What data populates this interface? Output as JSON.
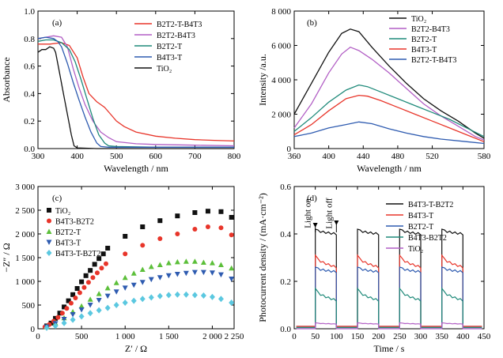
{
  "chart_data": [
    {
      "id": "a",
      "panel_label": "(a)",
      "type": "line",
      "xlabel": "Wavelength / nm",
      "ylabel": "Absorbance",
      "xlim": [
        300,
        800
      ],
      "ylim": [
        0.0,
        1.0
      ],
      "xticks": [
        300,
        400,
        500,
        600,
        700,
        800
      ],
      "xtick_labels": [
        "300",
        "400",
        "500",
        "600",
        "700",
        "800"
      ],
      "yticks": [
        0,
        0.2,
        0.4,
        0.6,
        0.8,
        1.0
      ],
      "ytick_labels": [
        "0.0",
        "0.2",
        "0.4",
        "0.6",
        "0.8",
        "1.0"
      ],
      "legend_position": "top-right",
      "series": [
        {
          "name": "B2T2-T-B4T3",
          "color": "#e8352a",
          "x": [
            300,
            330,
            360,
            380,
            400,
            415,
            430,
            450,
            470,
            485,
            500,
            520,
            550,
            600,
            650,
            700,
            750,
            800
          ],
          "y": [
            0.76,
            0.76,
            0.77,
            0.75,
            0.66,
            0.52,
            0.4,
            0.34,
            0.3,
            0.25,
            0.2,
            0.16,
            0.12,
            0.09,
            0.075,
            0.065,
            0.06,
            0.055
          ]
        },
        {
          "name": "B2T2-B4T3",
          "color": "#b25fc5",
          "x": [
            300,
            320,
            340,
            360,
            375,
            390,
            405,
            420,
            440,
            460,
            480,
            500,
            550,
            600,
            700,
            800
          ],
          "y": [
            0.8,
            0.81,
            0.82,
            0.81,
            0.74,
            0.58,
            0.44,
            0.32,
            0.2,
            0.12,
            0.08,
            0.05,
            0.035,
            0.03,
            0.025,
            0.02
          ]
        },
        {
          "name": "B2T2-T",
          "color": "#1f8a7a",
          "x": [
            300,
            320,
            340,
            360,
            380,
            395,
            410,
            425,
            440,
            455,
            470,
            480,
            500,
            600,
            800
          ],
          "y": [
            0.78,
            0.79,
            0.79,
            0.77,
            0.72,
            0.63,
            0.5,
            0.36,
            0.22,
            0.1,
            0.04,
            0.02,
            0.015,
            0.01,
            0.01
          ]
        },
        {
          "name": "B4T3-T",
          "color": "#2e5bb0",
          "x": [
            300,
            320,
            340,
            350,
            360,
            375,
            390,
            405,
            420,
            435,
            450,
            460,
            480,
            600,
            800
          ],
          "y": [
            0.8,
            0.81,
            0.8,
            0.78,
            0.74,
            0.62,
            0.48,
            0.35,
            0.23,
            0.12,
            0.04,
            0.015,
            0.01,
            0.01,
            0.01
          ]
        },
        {
          "name": "TiO2",
          "color": "#111111",
          "x": [
            300,
            310,
            320,
            330,
            340,
            345,
            355,
            365,
            375,
            385,
            392,
            400,
            450,
            800
          ],
          "y": [
            0.7,
            0.72,
            0.72,
            0.74,
            0.73,
            0.7,
            0.55,
            0.4,
            0.25,
            0.1,
            0.02,
            0.005,
            0.0,
            0.0
          ]
        }
      ]
    },
    {
      "id": "b",
      "panel_label": "(b)",
      "type": "line",
      "xlabel": "Wavelength / nm",
      "ylabel": "Intensity /a.u.",
      "xlim": [
        360,
        580
      ],
      "ylim": [
        0,
        8000
      ],
      "xticks": [
        360,
        400,
        440,
        480,
        520,
        580
      ],
      "xtick_labels": [
        "360",
        "400",
        "440",
        "480",
        "520",
        "580"
      ],
      "yticks": [
        0,
        2000,
        4000,
        6000,
        8000
      ],
      "ytick_labels": [
        "0",
        "2 000",
        "4 000",
        "6 000",
        "8 000"
      ],
      "legend_position": "top-right",
      "series": [
        {
          "name": "TiO2",
          "color": "#111111",
          "x": [
            360,
            380,
            400,
            415,
            425,
            435,
            450,
            470,
            490,
            510,
            530,
            550,
            570,
            580
          ],
          "y": [
            2000,
            3800,
            5600,
            6700,
            6950,
            6800,
            5900,
            4800,
            3800,
            2900,
            2200,
            1600,
            900,
            600
          ]
        },
        {
          "name": "B2T2-B4T3",
          "color": "#b25fc5",
          "x": [
            360,
            380,
            400,
            415,
            425,
            435,
            450,
            470,
            490,
            510,
            530,
            550,
            570,
            580
          ],
          "y": [
            1200,
            2600,
            4400,
            5500,
            5900,
            5700,
            5200,
            4400,
            3500,
            2600,
            1900,
            1300,
            700,
            500
          ]
        },
        {
          "name": "B2T2-T",
          "color": "#1f8a7a",
          "x": [
            360,
            380,
            400,
            420,
            435,
            445,
            460,
            480,
            500,
            520,
            540,
            560,
            580
          ],
          "y": [
            1000,
            1800,
            2700,
            3400,
            3700,
            3600,
            3300,
            2900,
            2500,
            2100,
            1700,
            1200,
            700
          ]
        },
        {
          "name": "B4T3-T",
          "color": "#e8352a",
          "x": [
            360,
            380,
            400,
            420,
            435,
            445,
            460,
            480,
            500,
            520,
            540,
            560,
            580
          ],
          "y": [
            800,
            1400,
            2200,
            2900,
            3100,
            3050,
            2800,
            2400,
            2000,
            1600,
            1200,
            800,
            400
          ]
        },
        {
          "name": "B2T2-T-B4T3",
          "color": "#2e5bb0",
          "x": [
            360,
            380,
            400,
            420,
            435,
            450,
            470,
            490,
            510,
            530,
            560,
            580
          ],
          "y": [
            700,
            900,
            1200,
            1400,
            1550,
            1450,
            1150,
            900,
            700,
            550,
            400,
            300
          ]
        }
      ]
    },
    {
      "id": "c",
      "panel_label": "(c)",
      "type": "scatter",
      "xlabel": "Z′ / Ω",
      "ylabel": "−Z″ / Ω",
      "xlim": [
        0,
        2250
      ],
      "ylim": [
        0,
        3000
      ],
      "xticks": [
        0,
        500,
        1000,
        1500,
        2000,
        2250
      ],
      "xtick_labels": [
        "0",
        "500",
        "1 000",
        "1 500",
        "2 000",
        "2 250"
      ],
      "yticks": [
        0,
        500,
        1000,
        1500,
        2000,
        2500,
        3000
      ],
      "ytick_labels": [
        "0",
        "500",
        "1 000",
        "1 500",
        "2 000",
        "2 500",
        "3 000"
      ],
      "legend_position": "top-left",
      "series": [
        {
          "name": "TiO2",
          "color": "#111111",
          "marker": "square",
          "x": [
            100,
            150,
            200,
            250,
            300,
            350,
            400,
            450,
            500,
            550,
            600,
            650,
            700,
            750,
            800,
            1000,
            1200,
            1400,
            1600,
            1800,
            1950,
            2100,
            2220
          ],
          "y": [
            60,
            120,
            220,
            330,
            460,
            590,
            720,
            850,
            990,
            1120,
            1230,
            1360,
            1480,
            1580,
            1700,
            1950,
            2150,
            2280,
            2380,
            2450,
            2480,
            2470,
            2350
          ]
        },
        {
          "name": "B4T3-B2T2",
          "color": "#e8352a",
          "marker": "circle",
          "x": [
            80,
            130,
            180,
            230,
            280,
            330,
            380,
            430,
            480,
            530,
            580,
            630,
            680,
            730,
            780,
            1000,
            1200,
            1400,
            1600,
            1800,
            1950,
            2100,
            2220
          ],
          "y": [
            40,
            90,
            160,
            240,
            330,
            430,
            540,
            650,
            760,
            870,
            980,
            1080,
            1180,
            1280,
            1370,
            1580,
            1760,
            1900,
            2000,
            2100,
            2150,
            2130,
            1980
          ]
        },
        {
          "name": "B2T2-T",
          "color": "#5cbf3a",
          "marker": "triangle",
          "x": [
            100,
            200,
            300,
            400,
            500,
            600,
            700,
            800,
            900,
            1000,
            1100,
            1200,
            1300,
            1400,
            1500,
            1600,
            1700,
            1800,
            1900,
            2000,
            2100,
            2220
          ],
          "y": [
            40,
            120,
            230,
            360,
            480,
            620,
            740,
            860,
            970,
            1080,
            1170,
            1250,
            1310,
            1350,
            1390,
            1410,
            1420,
            1420,
            1400,
            1390,
            1350,
            1280
          ]
        },
        {
          "name": "B4T3-T",
          "color": "#2e5bb0",
          "marker": "triangle-down",
          "x": [
            100,
            200,
            300,
            400,
            500,
            600,
            700,
            800,
            900,
            1000,
            1100,
            1200,
            1300,
            1400,
            1500,
            1600,
            1700,
            1800,
            1900,
            2000,
            2100,
            2220
          ],
          "y": [
            40,
            110,
            200,
            300,
            400,
            500,
            600,
            690,
            780,
            860,
            920,
            980,
            1040,
            1080,
            1120,
            1150,
            1170,
            1190,
            1190,
            1180,
            1140,
            1050
          ]
        },
        {
          "name": "B4T3-T-B2T2",
          "color": "#5bc8e0",
          "marker": "diamond",
          "x": [
            100,
            200,
            300,
            400,
            500,
            600,
            700,
            800,
            900,
            1000,
            1100,
            1200,
            1300,
            1400,
            1500,
            1600,
            1700,
            1800,
            1900,
            2000,
            2100,
            2220
          ],
          "y": [
            20,
            60,
            120,
            190,
            260,
            330,
            390,
            440,
            500,
            550,
            590,
            630,
            660,
            690,
            710,
            720,
            720,
            710,
            700,
            670,
            630,
            550
          ]
        }
      ]
    },
    {
      "id": "d",
      "panel_label": "(d)",
      "type": "line",
      "xlabel": "Time / s",
      "ylabel": "Photocurrent density / (mA·cm⁻²)",
      "xlim": [
        0,
        450
      ],
      "ylim": [
        0.0,
        0.6
      ],
      "xticks": [
        0,
        50,
        100,
        150,
        200,
        250,
        300,
        350,
        400,
        450
      ],
      "xtick_labels": [
        "0",
        "50",
        "100",
        "150",
        "200",
        "250",
        "300",
        "350",
        "400",
        "450"
      ],
      "yticks": [
        0.0,
        0.2,
        0.4,
        0.6
      ],
      "ytick_labels": [
        "0.0",
        "0.2",
        "0.4",
        "0.6"
      ],
      "legend_position": "top-right",
      "annotations": [
        {
          "text": "Light on",
          "x": 50,
          "y_arrow": 0.42
        },
        {
          "text": "Light off",
          "x": 100,
          "y_arrow": 0.43
        }
      ],
      "light_on_intervals": [
        [
          50,
          100
        ],
        [
          150,
          200
        ],
        [
          250,
          300
        ],
        [
          350,
          400
        ]
      ],
      "series": [
        {
          "name": "B4T3-T-B2T2",
          "color": "#111111",
          "baseline": 0.01,
          "on_start": 0.42,
          "on_end": 0.4
        },
        {
          "name": "B4T3-T",
          "color": "#e8352a",
          "baseline": 0.01,
          "on_start": 0.31,
          "on_end": 0.26
        },
        {
          "name": "B2T2-T",
          "color": "#2e5bb0",
          "baseline": 0.005,
          "on_start": 0.26,
          "on_end": 0.24
        },
        {
          "name": "B4T3-B2T2",
          "color": "#1f8a7a",
          "baseline": 0.005,
          "on_start": 0.17,
          "on_end": 0.12
        },
        {
          "name": "TiO2",
          "color": "#b25fc5",
          "baseline": 0.0,
          "on_start": 0.025,
          "on_end": 0.02
        }
      ]
    }
  ]
}
